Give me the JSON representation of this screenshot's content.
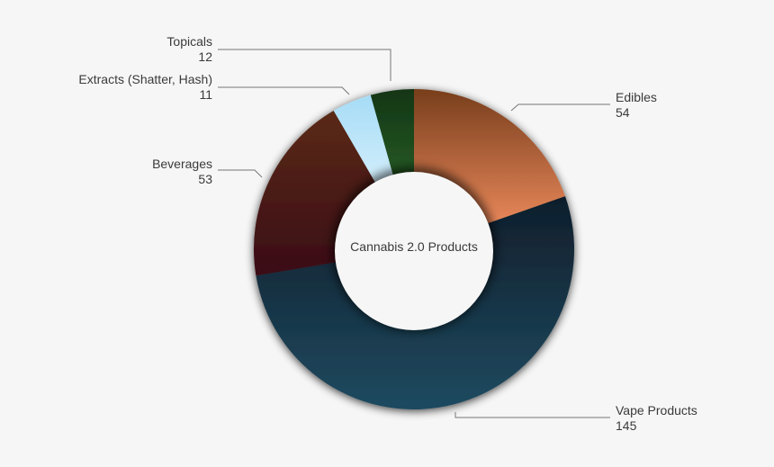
{
  "chart_data": {
    "type": "pie",
    "variant": "donut",
    "title": "Cannabis 2.0 Products",
    "start_angle": "12 o'clock, clockwise",
    "slices": [
      {
        "label": "Edibles",
        "value": 54,
        "color_top": "#783e1c",
        "color_bottom": "#ee8b5d"
      },
      {
        "label": "Vape Products",
        "value": 145,
        "color_top": "#0f1e2b",
        "color_bottom": "#1f4a60"
      },
      {
        "label": "Beverages",
        "value": 53,
        "color_top": "#5a2a18",
        "color_bottom": "#3a0c18"
      },
      {
        "label": "Extracts (Shatter, Hash)",
        "value": 11,
        "color_top": "#a6dcf6",
        "color_bottom": "#dcf2fc"
      },
      {
        "label": "Topicals",
        "value": 12,
        "color_top": "#123515",
        "color_bottom": "#2b6128"
      }
    ]
  }
}
